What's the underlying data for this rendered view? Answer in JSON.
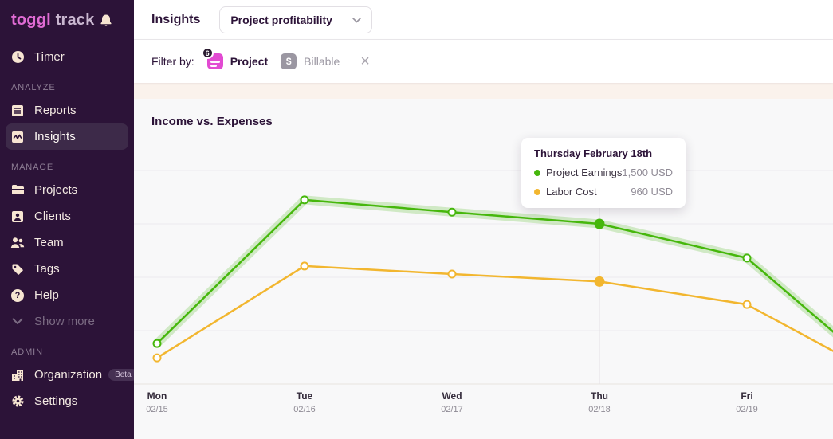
{
  "sidebar": {
    "logo": {
      "bold": "toggl",
      "light": "track"
    },
    "sections": [
      {
        "label": "",
        "items": [
          {
            "label": "Timer"
          }
        ]
      },
      {
        "label": "ANALYZE",
        "items": [
          {
            "label": "Reports"
          },
          {
            "label": "Insights"
          }
        ]
      },
      {
        "label": "MANAGE",
        "items": [
          {
            "label": "Projects"
          },
          {
            "label": "Clients"
          },
          {
            "label": "Team"
          },
          {
            "label": "Tags"
          },
          {
            "label": "Help"
          },
          {
            "label": "Show more"
          }
        ]
      },
      {
        "label": "ADMIN",
        "items": [
          {
            "label": "Organization",
            "badge": "Beta"
          },
          {
            "label": "Settings"
          }
        ]
      }
    ]
  },
  "topbar": {
    "title": "Insights",
    "view_selector": {
      "value": "Project profitability"
    }
  },
  "filter_bar": {
    "label": "Filter by:",
    "project_chip": {
      "count": "6",
      "label": "Project"
    },
    "billable_chip": {
      "symbol": "$",
      "label": "Billable"
    },
    "close": "×"
  },
  "chart_data": {
    "type": "line",
    "title": "Income vs. Expenses",
    "categories": [
      {
        "day": "Mon",
        "date": "02/15"
      },
      {
        "day": "Tue",
        "date": "02/16"
      },
      {
        "day": "Wed",
        "date": "02/17"
      },
      {
        "day": "Thu",
        "date": "02/18"
      },
      {
        "day": "Fri",
        "date": "02/19"
      }
    ],
    "series": [
      {
        "name": "Project Earnings",
        "color": "#46b70c",
        "halo": true,
        "values": [
          380,
          1725,
          1610,
          1500,
          1180
        ],
        "offscreen_next_value": 0
      },
      {
        "name": "Labor Cost",
        "color": "#f2b62f",
        "halo": false,
        "values": [
          245,
          1105,
          1030,
          960,
          745
        ],
        "offscreen_next_value": 0
      }
    ],
    "unit": "USD",
    "ylim": [
      0,
      2230
    ],
    "gridline_values": [
      500,
      1000,
      1500,
      2000
    ],
    "grid": "horizontal-only",
    "legend": "none",
    "highlight_index": 3,
    "tooltip": {
      "title": "Thursday February 18th",
      "rows": [
        {
          "label": "Project Earnings",
          "value": "1,500 USD"
        },
        {
          "label": "Labor Cost",
          "value": "960 USD"
        }
      ]
    }
  }
}
